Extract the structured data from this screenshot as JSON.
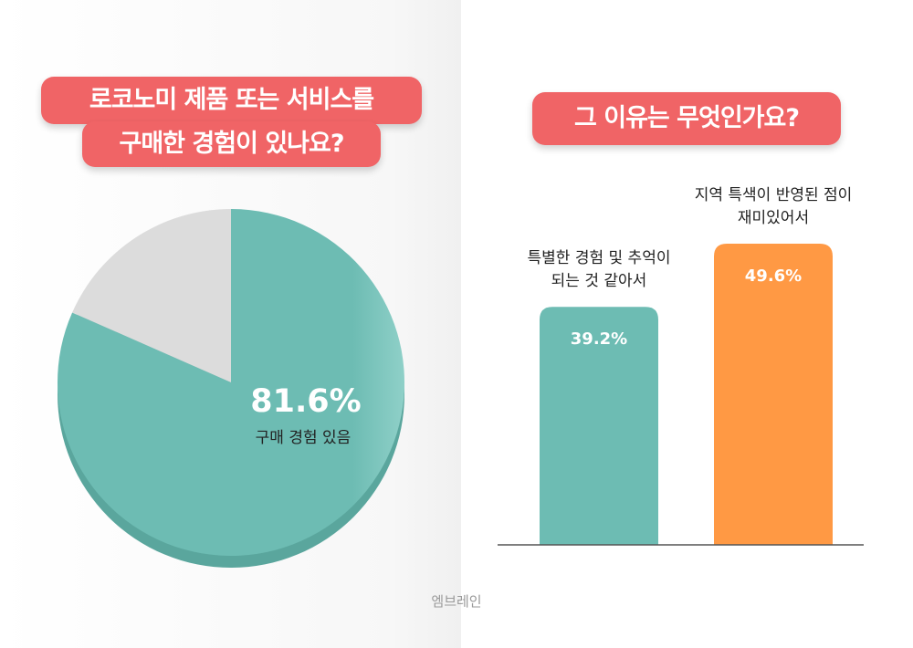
{
  "questions": {
    "q1_line1": "로코노미 제품 또는 서비스를",
    "q1_line2": "구매한 경험이 있나요?",
    "q2": "그 이유는 무엇인가요?"
  },
  "colors": {
    "accent_red": "#f06466",
    "teal": "#6dbcb3",
    "teal_dark": "#5aa69d",
    "gray": "#dcdcdc",
    "orange": "#ff9944"
  },
  "watermark": "엠브레인",
  "chart_data": [
    {
      "type": "pie",
      "title": "로코노미 제품 또는 서비스를 구매한 경험이 있나요?",
      "slices": [
        {
          "label": "구매 경험 있음",
          "value": 81.6,
          "value_label": "81.6%",
          "color": "#6dbcb3"
        },
        {
          "label": "",
          "value": 18.4,
          "color": "#dcdcdc"
        }
      ]
    },
    {
      "type": "bar",
      "title": "그 이유는 무엇인가요?",
      "categories": [
        [
          "특별한 경험 및 추억이",
          "되는 것 같아서"
        ],
        [
          "지역 특색이 반영된 점이",
          "재미있어서"
        ]
      ],
      "values": [
        39.2,
        49.6
      ],
      "value_labels": [
        "39.2%",
        "49.6%"
      ],
      "colors": [
        "#6dbcb3",
        "#ff9944"
      ]
    }
  ]
}
